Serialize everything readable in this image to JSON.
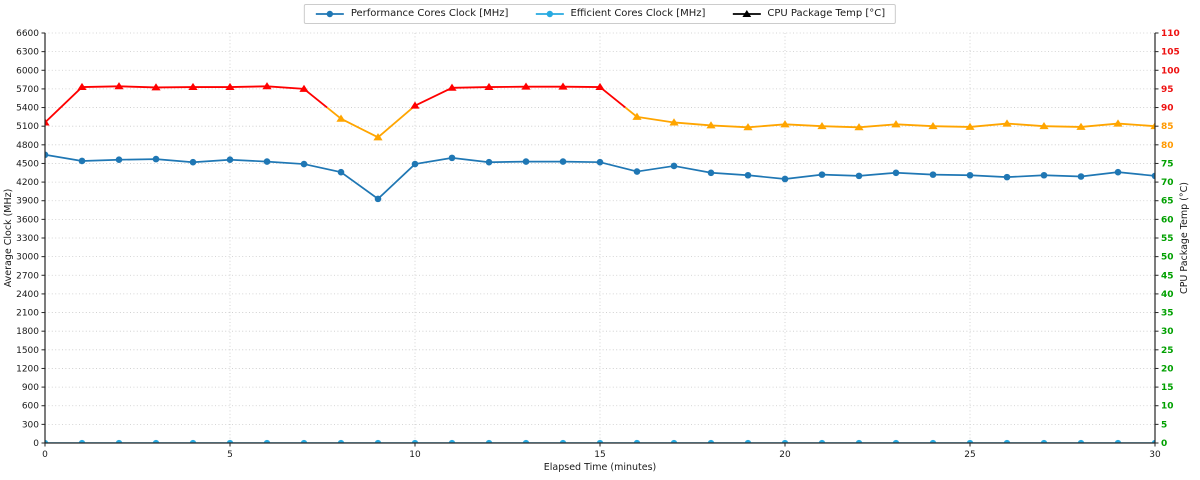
{
  "chart_data": {
    "type": "line",
    "xlabel": "Elapsed Time (minutes)",
    "ylabel_left": "Average Clock (MHz)",
    "ylabel_right": "CPU Package Temp (°C)",
    "x": [
      0,
      1,
      2,
      3,
      4,
      5,
      6,
      7,
      8,
      9,
      10,
      11,
      12,
      13,
      14,
      15,
      16,
      17,
      18,
      19,
      20,
      21,
      22,
      23,
      24,
      25,
      26,
      27,
      28,
      29,
      30
    ],
    "xlim": [
      0,
      30
    ],
    "x_ticks": [
      0,
      5,
      10,
      15,
      20,
      25,
      30
    ],
    "ylim_left": [
      0,
      6600
    ],
    "y_tick_step_left": 300,
    "ylim_right": [
      0,
      110
    ],
    "y_tick_step_right": 5,
    "grid": true,
    "legend_position": "top-center",
    "series": [
      {
        "name": "Performance Cores Clock [MHz]",
        "axis": "left",
        "marker": "circle",
        "color": "#1f77b4",
        "values": [
          4640,
          4540,
          4560,
          4570,
          4520,
          4560,
          4530,
          4490,
          4360,
          3930,
          4490,
          4590,
          4520,
          4530,
          4530,
          4520,
          4370,
          4460,
          4350,
          4310,
          4250,
          4320,
          4300,
          4350,
          4320,
          4310,
          4280,
          4310,
          4290,
          4360,
          4300
        ]
      },
      {
        "name": "Efficient Cores Clock [MHz]",
        "axis": "left",
        "marker": "circle",
        "color": "#27aae1",
        "values": [
          0,
          0,
          0,
          0,
          0,
          0,
          0,
          0,
          0,
          0,
          0,
          0,
          0,
          0,
          0,
          0,
          0,
          0,
          0,
          0,
          0,
          0,
          0,
          0,
          0,
          0,
          0,
          0,
          0,
          0,
          0
        ]
      },
      {
        "name": "CPU Package Temp [°C]",
        "axis": "right",
        "marker": "triangle",
        "color_hot": "#ff0000",
        "color_warm": "#ffa500",
        "hot_threshold": 90,
        "legend_color": "#000000",
        "values": [
          86,
          95.5,
          95.7,
          95.4,
          95.5,
          95.5,
          95.7,
          95,
          87,
          82,
          90.5,
          95.3,
          95.5,
          95.6,
          95.6,
          95.5,
          87.5,
          86,
          85.2,
          84.7,
          85.5,
          85,
          84.7,
          85.5,
          85,
          84.8,
          85.7,
          85,
          84.8,
          85.7,
          85
        ]
      }
    ],
    "right_tick_colors": {
      "green_max": 75,
      "orange_max": 85,
      "green": "#00a000",
      "orange": "#ff9900",
      "red": "#ee1111"
    },
    "tick_color": "#1a1a1a",
    "grid_color": "#c9c9c9",
    "spine_color": "#262626"
  }
}
